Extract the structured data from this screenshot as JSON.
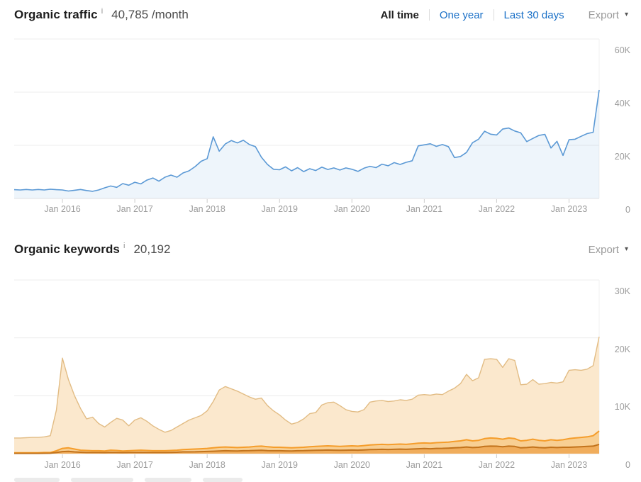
{
  "traffic_section": {
    "title": "Organic traffic",
    "info_icon": "i",
    "value": "40,785",
    "value_suffix": "/month",
    "tabs": [
      "All time",
      "One year",
      "Last 30 days"
    ],
    "active_tab": "All time",
    "export_label": "Export",
    "export_caret": "▾"
  },
  "keywords_section": {
    "title": "Organic keywords",
    "info_icon": "i",
    "value": "20,192",
    "export_label": "Export",
    "export_caret": "▾"
  },
  "colors": {
    "link_blue": "#1a70c7",
    "active_tab_text": "#1f1f1f",
    "export_text": "#9a9a9a",
    "axis_text": "#9b9b9b",
    "gridline": "#ececec",
    "tick": "#cccccc",
    "baseline": "#e4e4e4",
    "traffic_line": "#5b99d5",
    "traffic_fill": "rgba(91,153,213,0.10)",
    "kw_total_stroke": "#e2bc84",
    "kw_total_fill": "#fbe8cd",
    "kw_mid_stroke": "#f59d2b",
    "kw_mid_fill": "#f8cf93",
    "kw_low_stroke": "#c2731c",
    "kw_low_fill": "#f0ad5c"
  },
  "chart_data": [
    {
      "type": "line",
      "title": "Organic traffic",
      "x_unit": "month",
      "x_range": [
        "May 2015",
        "Jun 2023"
      ],
      "x_tick_labels": [
        "Jan 2016",
        "Jan 2017",
        "Jan 2018",
        "Jan 2019",
        "Jan 2020",
        "Jan 2021",
        "Jan 2022",
        "Jan 2023"
      ],
      "y_tick_labels": [
        "60K",
        "40K",
        "20K",
        "0"
      ],
      "ylim": [
        0,
        60000
      ],
      "grid": "horizontal",
      "legend": "none",
      "series": [
        {
          "name": "organic-traffic",
          "unit": "thousands-of-visits-per-month",
          "values": [
            3.3,
            3.2,
            3.4,
            3.2,
            3.4,
            3.2,
            3.5,
            3.3,
            3.2,
            2.8,
            3.1,
            3.4,
            3.0,
            2.7,
            3.2,
            4.0,
            4.7,
            4.2,
            5.6,
            5.0,
            6.1,
            5.5,
            6.9,
            7.7,
            6.5,
            8.0,
            8.8,
            8.0,
            9.6,
            10.4,
            12.0,
            14.0,
            15.0,
            23.2,
            17.8,
            20.5,
            21.8,
            20.9,
            21.9,
            20.3,
            19.5,
            15.5,
            12.8,
            11.0,
            10.8,
            11.9,
            10.4,
            11.6,
            10.1,
            11.2,
            10.5,
            11.8,
            10.9,
            11.5,
            10.7,
            11.5,
            11.0,
            10.2,
            11.4,
            12.1,
            11.6,
            12.9,
            12.3,
            13.5,
            12.8,
            13.6,
            14.2,
            19.8,
            20.2,
            20.6,
            19.6,
            20.3,
            19.5,
            15.4,
            15.8,
            17.3,
            21.0,
            22.3,
            25.3,
            24.2,
            23.9,
            26.1,
            26.5,
            25.4,
            24.7,
            21.4,
            22.6,
            23.7,
            24.1,
            19.0,
            21.5,
            16.2,
            22.1,
            22.3,
            23.4,
            24.4,
            24.9,
            40.8
          ]
        }
      ]
    },
    {
      "type": "area",
      "title": "Organic keywords",
      "x_unit": "month",
      "x_range": [
        "May 2015",
        "Jun 2023"
      ],
      "x_tick_labels": [
        "Jan 2016",
        "Jan 2017",
        "Jan 2018",
        "Jan 2019",
        "Jan 2020",
        "Jan 2021",
        "Jan 2022",
        "Jan 2023"
      ],
      "y_tick_labels": [
        "30K",
        "20K",
        "10K",
        "0"
      ],
      "ylim": [
        0,
        30000
      ],
      "grid": "horizontal",
      "legend": "cropped-out-of-view",
      "series": [
        {
          "name": "keywords-total",
          "unit": "thousands-of-keywords",
          "values": [
            2.7,
            2.7,
            2.75,
            2.8,
            2.8,
            2.9,
            3.1,
            7.5,
            16.5,
            12.8,
            10.0,
            7.8,
            6.0,
            6.3,
            5.2,
            4.6,
            5.4,
            6.1,
            5.8,
            4.8,
            5.8,
            6.2,
            5.6,
            4.8,
            4.2,
            3.7,
            4.0,
            4.6,
            5.2,
            5.8,
            6.2,
            6.6,
            7.4,
            9.0,
            11.0,
            11.6,
            11.2,
            10.8,
            10.3,
            9.8,
            9.4,
            9.6,
            8.3,
            7.4,
            6.7,
            5.8,
            5.1,
            5.4,
            6.0,
            6.9,
            7.1,
            8.4,
            8.8,
            8.9,
            8.3,
            7.6,
            7.3,
            7.2,
            7.6,
            8.9,
            9.1,
            9.2,
            9.0,
            9.1,
            9.3,
            9.2,
            9.4,
            10.1,
            10.2,
            10.1,
            10.3,
            10.2,
            10.8,
            11.3,
            12.1,
            13.7,
            12.6,
            13.1,
            16.3,
            16.4,
            16.3,
            14.9,
            16.4,
            16.1,
            11.9,
            12.0,
            12.8,
            12.0,
            12.1,
            12.3,
            12.2,
            12.4,
            14.4,
            14.5,
            14.4,
            14.6,
            15.2,
            20.2
          ]
        },
        {
          "name": "keywords-band-mid",
          "unit": "thousands-of-keywords",
          "values": [
            0.15,
            0.15,
            0.15,
            0.15,
            0.15,
            0.2,
            0.2,
            0.5,
            0.9,
            1.0,
            0.8,
            0.6,
            0.55,
            0.5,
            0.5,
            0.45,
            0.6,
            0.55,
            0.45,
            0.5,
            0.55,
            0.6,
            0.55,
            0.5,
            0.5,
            0.5,
            0.55,
            0.6,
            0.7,
            0.75,
            0.8,
            0.85,
            0.9,
            1.0,
            1.1,
            1.15,
            1.1,
            1.05,
            1.1,
            1.15,
            1.25,
            1.3,
            1.2,
            1.1,
            1.1,
            1.05,
            1.0,
            1.05,
            1.1,
            1.2,
            1.25,
            1.3,
            1.35,
            1.3,
            1.25,
            1.3,
            1.35,
            1.3,
            1.4,
            1.5,
            1.55,
            1.6,
            1.55,
            1.6,
            1.65,
            1.6,
            1.7,
            1.8,
            1.85,
            1.8,
            1.9,
            1.95,
            2.0,
            2.1,
            2.2,
            2.4,
            2.2,
            2.3,
            2.6,
            2.7,
            2.65,
            2.5,
            2.7,
            2.6,
            2.2,
            2.3,
            2.5,
            2.3,
            2.2,
            2.4,
            2.3,
            2.4,
            2.6,
            2.7,
            2.8,
            2.9,
            3.1,
            3.9
          ]
        },
        {
          "name": "keywords-band-low",
          "unit": "thousands-of-keywords",
          "values": [
            0.05,
            0.05,
            0.05,
            0.05,
            0.05,
            0.06,
            0.07,
            0.2,
            0.35,
            0.4,
            0.3,
            0.25,
            0.2,
            0.2,
            0.2,
            0.18,
            0.22,
            0.2,
            0.18,
            0.2,
            0.2,
            0.22,
            0.2,
            0.2,
            0.2,
            0.2,
            0.22,
            0.25,
            0.3,
            0.3,
            0.32,
            0.35,
            0.38,
            0.42,
            0.45,
            0.5,
            0.48,
            0.46,
            0.5,
            0.52,
            0.55,
            0.58,
            0.52,
            0.5,
            0.5,
            0.48,
            0.45,
            0.5,
            0.52,
            0.55,
            0.58,
            0.6,
            0.62,
            0.6,
            0.58,
            0.6,
            0.62,
            0.6,
            0.65,
            0.7,
            0.72,
            0.75,
            0.72,
            0.75,
            0.78,
            0.75,
            0.8,
            0.85,
            0.88,
            0.85,
            0.9,
            0.92,
            0.95,
            1.0,
            1.05,
            1.15,
            1.05,
            1.1,
            1.25,
            1.3,
            1.28,
            1.2,
            1.3,
            1.25,
            1.0,
            1.05,
            1.15,
            1.05,
            1.0,
            1.1,
            1.05,
            1.1,
            1.1,
            1.15,
            1.2,
            1.25,
            1.3,
            1.6
          ]
        }
      ]
    }
  ]
}
